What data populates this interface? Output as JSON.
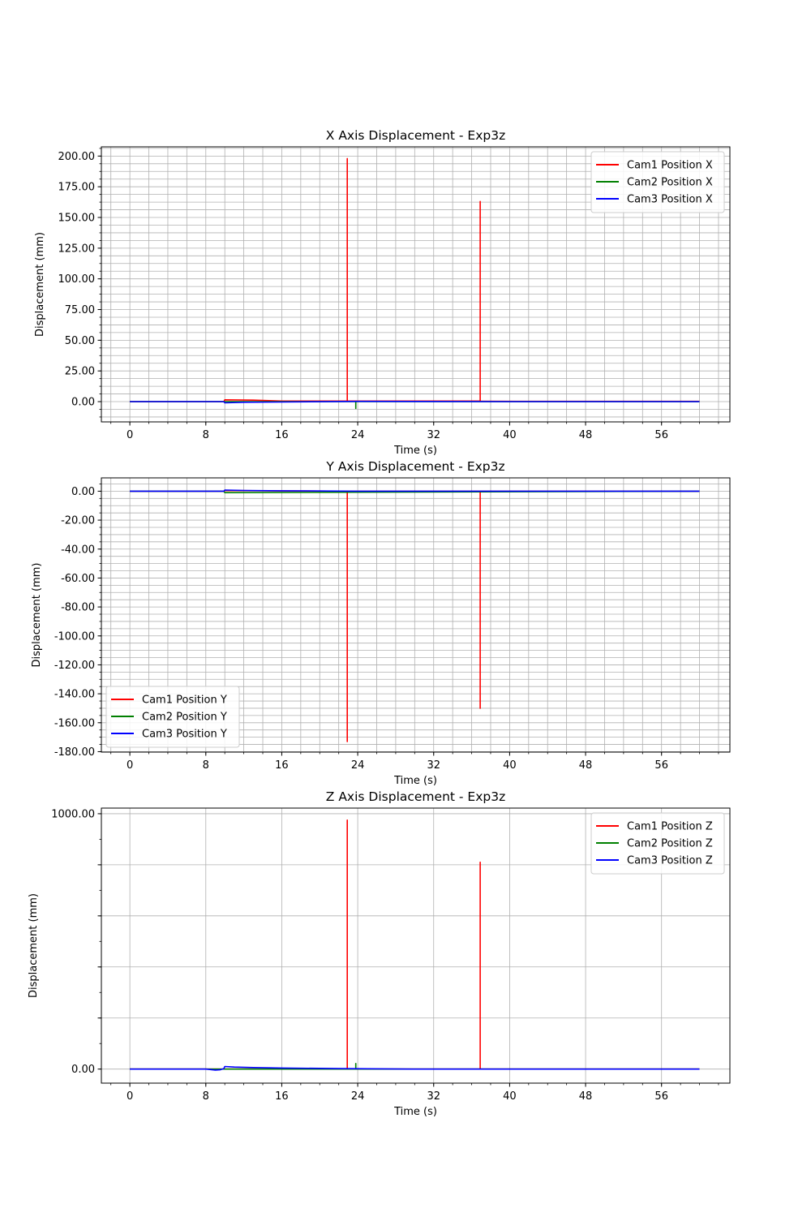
{
  "chart_data": [
    {
      "type": "line",
      "title": "X Axis Displacement - Exp3z",
      "xlabel": "Time (s)",
      "ylabel": "Displacement (mm)",
      "xlim": [
        -3,
        63.2
      ],
      "ylim": [
        -16.5,
        207.5
      ],
      "x_ticks": [
        0,
        8,
        16,
        24,
        32,
        40,
        48,
        56
      ],
      "y_ticks": [
        {
          "value": 0,
          "label": "0.00"
        },
        {
          "value": 25,
          "label": "25.00"
        },
        {
          "value": 50,
          "label": "50.00"
        },
        {
          "value": 75,
          "label": "75.00"
        },
        {
          "value": 100,
          "label": "100.00"
        },
        {
          "value": 125,
          "label": "125.00"
        },
        {
          "value": 150,
          "label": "150.00"
        },
        {
          "value": 175,
          "label": "175.00"
        },
        {
          "value": 200,
          "label": "200.00"
        }
      ],
      "grid": "major-and-minor",
      "legend_position": "top-right",
      "series": [
        {
          "name": "Cam1 Position X",
          "color": "#ff0000",
          "x": [
            0,
            9.9,
            10,
            13,
            16,
            22.9,
            22.9,
            22.9,
            23,
            30,
            36.9,
            36.9,
            36.9,
            37,
            60
          ],
          "y": [
            0,
            0,
            1.5,
            1.2,
            0.5,
            0.5,
            198,
            0.5,
            0.5,
            0.5,
            0.5,
            163,
            0.5,
            0.3,
            0.2
          ]
        },
        {
          "name": "Cam2 Position X",
          "color": "#008000",
          "x": [
            0,
            23.8,
            23.8,
            23.8,
            24,
            60
          ],
          "y": [
            0,
            0,
            -5.5,
            0,
            0,
            0
          ]
        },
        {
          "name": "Cam3 Position X",
          "color": "#0000ff",
          "x": [
            0,
            9.9,
            10,
            12,
            16,
            24,
            40,
            60
          ],
          "y": [
            0,
            0,
            -1,
            -0.5,
            -0.3,
            0.2,
            0,
            0
          ]
        }
      ]
    },
    {
      "type": "line",
      "title": "Y Axis Displacement - Exp3z",
      "xlabel": "Time (s)",
      "ylabel": "Displacement (mm)",
      "xlim": [
        -3,
        63.2
      ],
      "ylim": [
        -180.3,
        9.2
      ],
      "x_ticks": [
        0,
        8,
        16,
        24,
        32,
        40,
        48,
        56
      ],
      "y_ticks": [
        {
          "value": 0,
          "label": "0.00"
        },
        {
          "value": -20,
          "label": "-20.00"
        },
        {
          "value": -40,
          "label": "-40.00"
        },
        {
          "value": -60,
          "label": "-60.00"
        },
        {
          "value": -80,
          "label": "-80.00"
        },
        {
          "value": -100,
          "label": "-100.00"
        },
        {
          "value": -120,
          "label": "-120.00"
        },
        {
          "value": -140,
          "label": "-140.00"
        },
        {
          "value": -160,
          "label": "-160.00"
        },
        {
          "value": -180,
          "label": "-180.00"
        }
      ],
      "grid": "major-and-minor",
      "legend_position": "bottom-left",
      "series": [
        {
          "name": "Cam1 Position Y",
          "color": "#ff0000",
          "x": [
            0,
            9.9,
            10,
            16,
            22.9,
            22.9,
            22.9,
            23,
            36.9,
            36.9,
            36.9,
            37,
            60
          ],
          "y": [
            0,
            0,
            0.5,
            0.2,
            0,
            -173,
            0,
            0,
            0,
            -150,
            0,
            0,
            0
          ]
        },
        {
          "name": "Cam2 Position Y",
          "color": "#008000",
          "x": [
            0,
            9.9,
            10,
            60
          ],
          "y": [
            0,
            0,
            -1,
            0
          ]
        },
        {
          "name": "Cam3 Position Y",
          "color": "#0000ff",
          "x": [
            0,
            9.9,
            10,
            12,
            16,
            24,
            60
          ],
          "y": [
            0,
            0,
            0.8,
            0.5,
            0.3,
            0,
            0
          ]
        }
      ]
    },
    {
      "type": "line",
      "title": "Z Axis Displacement - Exp3z",
      "xlabel": "Time (s)",
      "ylabel": "Displacement (mm)",
      "xlim": [
        -3,
        63.2
      ],
      "ylim": [
        -55,
        1022
      ],
      "x_ticks": [
        0,
        8,
        16,
        24,
        32,
        40,
        48,
        56
      ],
      "y_ticks": [
        {
          "value": 0,
          "label": "0.00"
        },
        {
          "value": 200,
          "label": ""
        },
        {
          "value": 400,
          "label": ""
        },
        {
          "value": 600,
          "label": ""
        },
        {
          "value": 800,
          "label": ""
        },
        {
          "value": 1000,
          "label": "1000.00"
        }
      ],
      "grid": "major",
      "legend_position": "top-right",
      "series": [
        {
          "name": "Cam1 Position Z",
          "color": "#ff0000",
          "x": [
            0,
            22.9,
            22.9,
            22.9,
            23,
            36.9,
            36.9,
            36.9,
            37,
            60
          ],
          "y": [
            0,
            0,
            975,
            0,
            0,
            0,
            810,
            0,
            0,
            0
          ]
        },
        {
          "name": "Cam2 Position Z",
          "color": "#008000",
          "x": [
            0,
            23.8,
            23.8,
            23.8,
            24,
            60
          ],
          "y": [
            0,
            0,
            22,
            0,
            0,
            0
          ]
        },
        {
          "name": "Cam3 Position Z",
          "color": "#0000ff",
          "x": [
            0,
            8,
            9,
            9.5,
            9.9,
            10,
            11,
            13,
            16,
            22,
            30,
            60
          ],
          "y": [
            0,
            0,
            -4,
            -3,
            2,
            10,
            8,
            6,
            4,
            2,
            0,
            0
          ]
        }
      ]
    }
  ]
}
